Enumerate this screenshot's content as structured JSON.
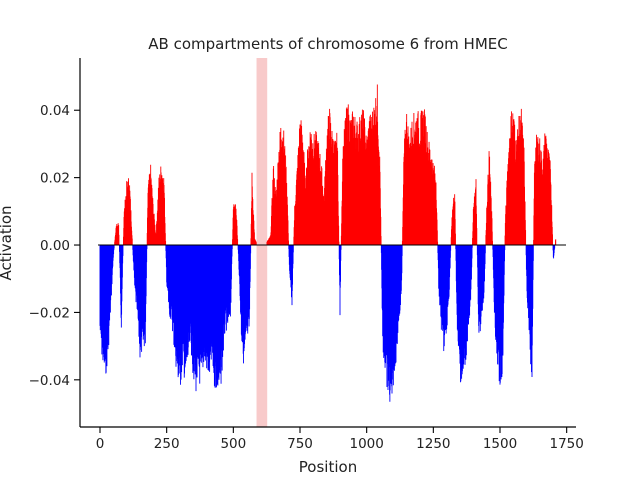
{
  "chart_data": {
    "type": "bar",
    "title": "AB compartments of chromosome 6 from HMEC",
    "xlabel": "Position",
    "ylabel": "Activation",
    "xlim": [
      -75,
      1785
    ],
    "ylim": [
      -0.054,
      0.0555
    ],
    "xticks": [
      0,
      250,
      500,
      750,
      1000,
      1250,
      1500,
      1750
    ],
    "xtick_labels": [
      "0",
      "250",
      "500",
      "750",
      "1000",
      "1250",
      "1500",
      "1750"
    ],
    "yticks": [
      -0.04,
      -0.02,
      0.0,
      0.02,
      0.04
    ],
    "ytick_labels": [
      "−0.04",
      "−0.02",
      "0.00",
      "0.02",
      "0.04"
    ],
    "positive_color": "#ff0000",
    "negative_color": "#0000ff",
    "zero_line_color": "#000000",
    "highlight_region": {
      "x_start": 587,
      "x_end": 627,
      "color": "#f4a6a6"
    },
    "profile_breakpoints": [
      [
        0,
        -0.028
      ],
      [
        10,
        -0.036
      ],
      [
        20,
        -0.04
      ],
      [
        30,
        -0.034
      ],
      [
        40,
        -0.02
      ],
      [
        50,
        -0.004
      ],
      [
        60,
        0.006
      ],
      [
        70,
        0.007
      ],
      [
        80,
        -0.025
      ],
      [
        90,
        0.01
      ],
      [
        100,
        0.019
      ],
      [
        110,
        0.021
      ],
      [
        120,
        0.004
      ],
      [
        130,
        -0.014
      ],
      [
        140,
        -0.022
      ],
      [
        150,
        -0.034
      ],
      [
        160,
        -0.032
      ],
      [
        170,
        -0.03
      ],
      [
        180,
        0.018
      ],
      [
        190,
        0.024
      ],
      [
        200,
        0.012
      ],
      [
        210,
        0.003
      ],
      [
        220,
        0.02
      ],
      [
        230,
        0.025
      ],
      [
        240,
        0.021
      ],
      [
        250,
        -0.012
      ],
      [
        260,
        -0.021
      ],
      [
        270,
        -0.024
      ],
      [
        280,
        -0.033
      ],
      [
        290,
        -0.04
      ],
      [
        300,
        -0.044
      ],
      [
        310,
        -0.036
      ],
      [
        320,
        -0.042
      ],
      [
        330,
        -0.036
      ],
      [
        340,
        -0.03
      ],
      [
        350,
        -0.04
      ],
      [
        360,
        -0.044
      ],
      [
        370,
        -0.041
      ],
      [
        380,
        -0.043
      ],
      [
        390,
        -0.035
      ],
      [
        400,
        -0.038
      ],
      [
        410,
        -0.041
      ],
      [
        420,
        -0.035
      ],
      [
        430,
        -0.043
      ],
      [
        440,
        -0.044
      ],
      [
        450,
        -0.045
      ],
      [
        460,
        -0.036
      ],
      [
        470,
        -0.025
      ],
      [
        480,
        -0.026
      ],
      [
        490,
        -0.021
      ],
      [
        500,
        0.012
      ],
      [
        510,
        0.013
      ],
      [
        520,
        -0.005
      ],
      [
        530,
        -0.028
      ],
      [
        540,
        -0.037
      ],
      [
        550,
        -0.03
      ],
      [
        560,
        -0.027
      ],
      [
        570,
        0.022
      ],
      [
        580,
        0.002
      ],
      [
        590,
        0.0
      ],
      [
        600,
        0.0
      ],
      [
        610,
        0.0
      ],
      [
        620,
        0.0
      ],
      [
        640,
        0.003
      ],
      [
        650,
        0.025
      ],
      [
        660,
        0.015
      ],
      [
        670,
        0.03
      ],
      [
        680,
        0.039
      ],
      [
        690,
        0.034
      ],
      [
        700,
        0.022
      ],
      [
        710,
        -0.007
      ],
      [
        720,
        -0.018
      ],
      [
        730,
        0.012
      ],
      [
        740,
        0.025
      ],
      [
        750,
        0.039
      ],
      [
        760,
        0.036
      ],
      [
        770,
        0.02
      ],
      [
        780,
        0.031
      ],
      [
        790,
        0.037
      ],
      [
        800,
        0.033
      ],
      [
        810,
        0.034
      ],
      [
        820,
        0.031
      ],
      [
        830,
        0.025
      ],
      [
        840,
        0.015
      ],
      [
        850,
        0.034
      ],
      [
        860,
        0.042
      ],
      [
        870,
        0.035
      ],
      [
        880,
        0.031
      ],
      [
        890,
        0.034
      ],
      [
        900,
        -0.021
      ],
      [
        910,
        0.028
      ],
      [
        920,
        0.039
      ],
      [
        930,
        0.043
      ],
      [
        940,
        0.038
      ],
      [
        950,
        0.041
      ],
      [
        960,
        0.038
      ],
      [
        970,
        0.037
      ],
      [
        980,
        0.041
      ],
      [
        990,
        0.04
      ],
      [
        1000,
        0.032
      ],
      [
        1010,
        0.039
      ],
      [
        1020,
        0.04
      ],
      [
        1030,
        0.044
      ],
      [
        1040,
        0.048
      ],
      [
        1050,
        0.025
      ],
      [
        1060,
        -0.03
      ],
      [
        1070,
        -0.04
      ],
      [
        1080,
        -0.046
      ],
      [
        1090,
        -0.048
      ],
      [
        1100,
        -0.042
      ],
      [
        1110,
        -0.036
      ],
      [
        1120,
        -0.024
      ],
      [
        1130,
        -0.018
      ],
      [
        1140,
        0.03
      ],
      [
        1150,
        0.041
      ],
      [
        1160,
        0.032
      ],
      [
        1170,
        0.038
      ],
      [
        1180,
        0.04
      ],
      [
        1190,
        0.041
      ],
      [
        1200,
        0.038
      ],
      [
        1210,
        0.042
      ],
      [
        1220,
        0.04
      ],
      [
        1230,
        0.032
      ],
      [
        1240,
        0.03
      ],
      [
        1250,
        0.025
      ],
      [
        1260,
        0.022
      ],
      [
        1270,
        -0.013
      ],
      [
        1280,
        -0.026
      ],
      [
        1290,
        -0.033
      ],
      [
        1300,
        -0.028
      ],
      [
        1310,
        -0.014
      ],
      [
        1320,
        0.01
      ],
      [
        1330,
        0.018
      ],
      [
        1340,
        -0.03
      ],
      [
        1350,
        -0.04
      ],
      [
        1360,
        -0.044
      ],
      [
        1370,
        -0.036
      ],
      [
        1380,
        -0.028
      ],
      [
        1390,
        -0.02
      ],
      [
        1400,
        0.012
      ],
      [
        1410,
        0.02
      ],
      [
        1420,
        -0.028
      ],
      [
        1430,
        -0.024
      ],
      [
        1440,
        -0.018
      ],
      [
        1450,
        0.012
      ],
      [
        1460,
        0.03
      ],
      [
        1470,
        0.008
      ],
      [
        1480,
        -0.024
      ],
      [
        1490,
        -0.037
      ],
      [
        1500,
        -0.044
      ],
      [
        1510,
        -0.04
      ],
      [
        1520,
        0.008
      ],
      [
        1530,
        0.027
      ],
      [
        1540,
        0.04
      ],
      [
        1550,
        0.042
      ],
      [
        1560,
        0.032
      ],
      [
        1570,
        0.038
      ],
      [
        1580,
        0.041
      ],
      [
        1590,
        0.03
      ],
      [
        1600,
        -0.012
      ],
      [
        1610,
        -0.032
      ],
      [
        1620,
        -0.04
      ],
      [
        1630,
        0.03
      ],
      [
        1640,
        0.034
      ],
      [
        1650,
        0.032
      ],
      [
        1660,
        0.025
      ],
      [
        1670,
        0.036
      ],
      [
        1680,
        0.03
      ],
      [
        1690,
        0.024
      ],
      [
        1700,
        -0.005
      ],
      [
        1710,
        0.003
      ]
    ]
  }
}
